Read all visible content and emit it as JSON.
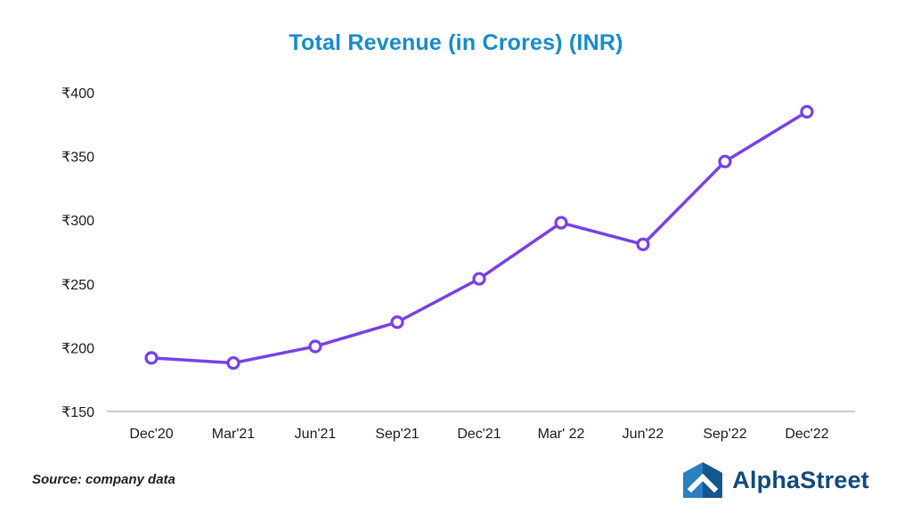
{
  "chart_data": {
    "type": "line",
    "title": "Total Revenue (in Crores) (INR)",
    "categories": [
      "Dec'20",
      "Mar'21",
      "Jun'21",
      "Sep'21",
      "Dec'21",
      "Mar' 22",
      "Jun'22",
      "Sep'22",
      "Dec'22"
    ],
    "values": [
      192,
      188,
      201,
      220,
      254,
      298,
      281,
      346,
      385
    ],
    "xlabel": "",
    "ylabel": "",
    "ylim": [
      150,
      400
    ],
    "ytick_step": 50,
    "ytick_prefix": "₹",
    "grid": false,
    "legend_position": "none",
    "line_color": "#7840e8",
    "marker_fill": "#ffffff",
    "axis_line_color": "#cccccc"
  },
  "footer": {
    "source_label": "Source: company data",
    "brand_name": "AlphaStreet"
  },
  "colors": {
    "title": "#168bcc",
    "brand_text": "#114a7c",
    "logo_light_blue": "#2a7fc1",
    "logo_dark_blue": "#14568f",
    "tick_text": "#1a1a1a"
  }
}
